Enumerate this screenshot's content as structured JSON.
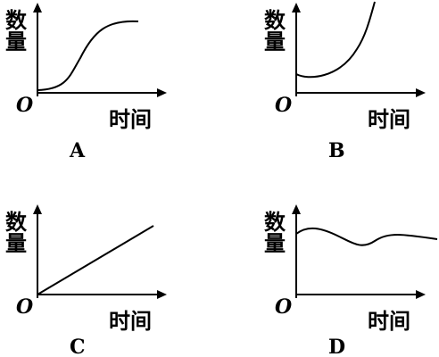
{
  "panels": [
    {
      "label": "A",
      "y_label": "数量",
      "x_label": "时间",
      "origin": "O"
    },
    {
      "label": "B",
      "y_label": "数量",
      "x_label": "时间",
      "origin": "O"
    },
    {
      "label": "C",
      "y_label": "数量",
      "x_label": "时间",
      "origin": "O"
    },
    {
      "label": "D",
      "y_label": "数量",
      "x_label": "时间",
      "origin": "O"
    }
  ]
}
